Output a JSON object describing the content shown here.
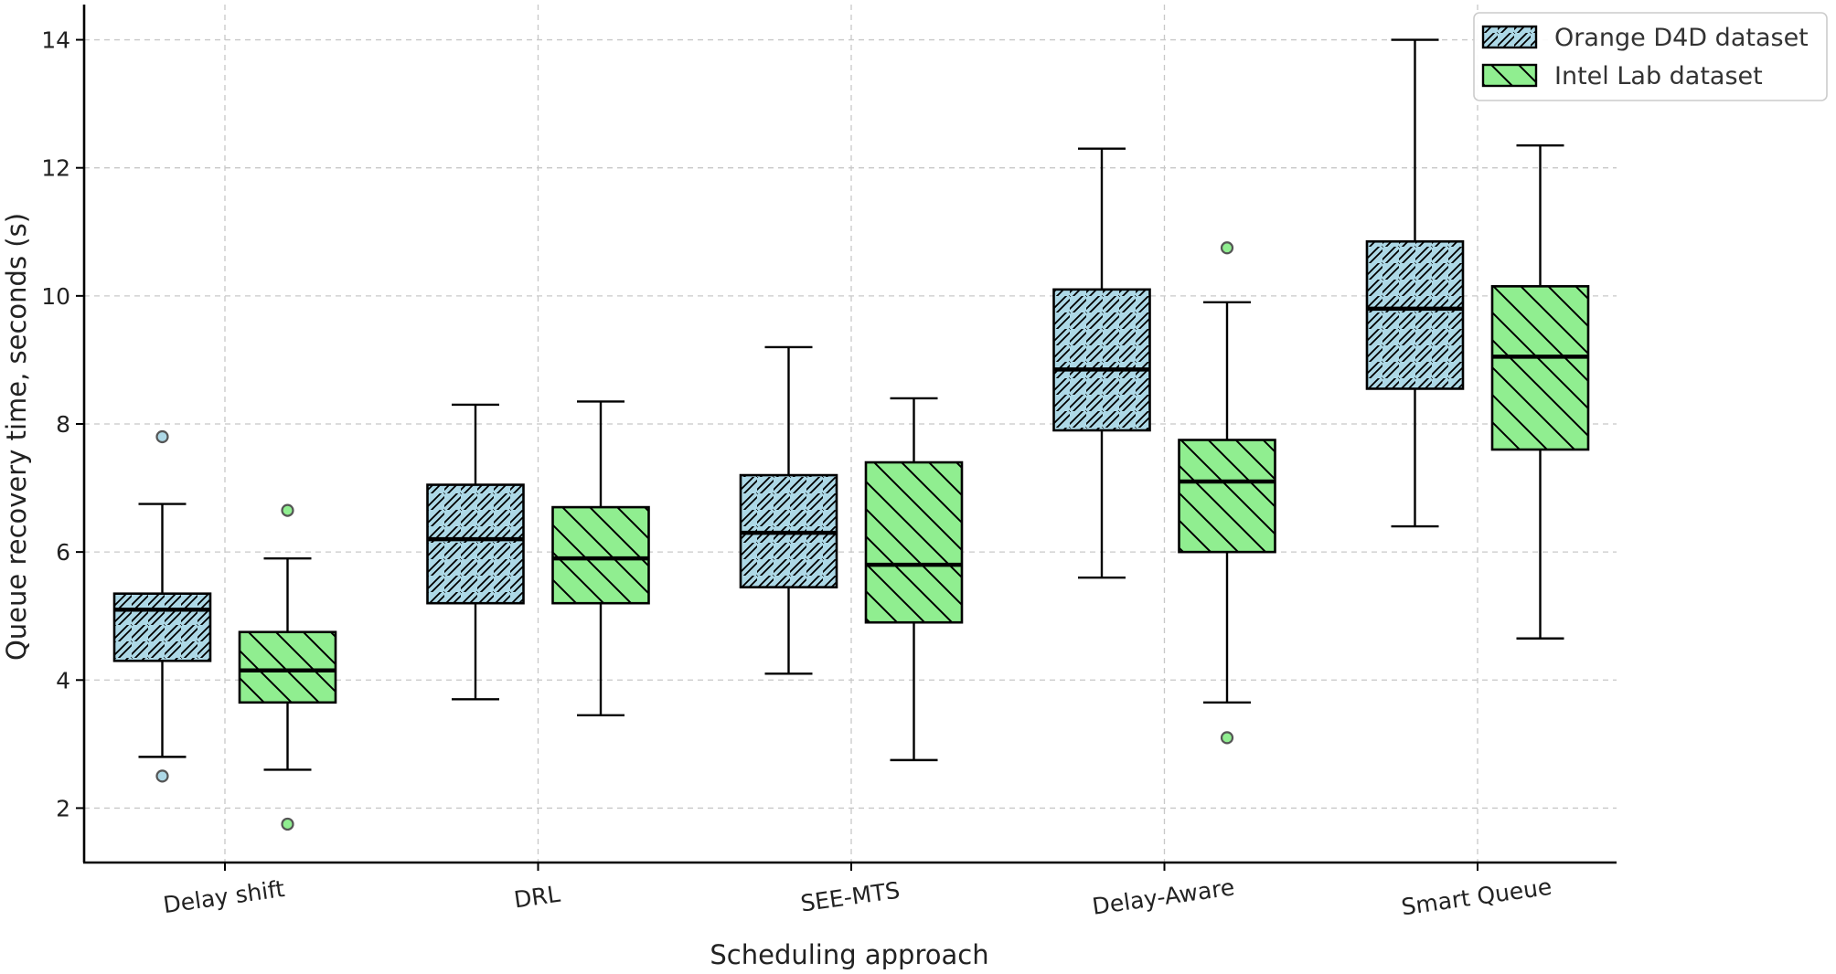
{
  "chart_data": {
    "type": "boxplot",
    "title": "",
    "xlabel": "Scheduling approach",
    "ylabel": "Queue recovery time, seconds (s)",
    "ylim": [
      1.15,
      14.55
    ],
    "yticks": [
      2,
      4,
      6,
      8,
      10,
      12,
      14
    ],
    "grid": true,
    "legend_position": "top-right",
    "categories": [
      "Delay shift",
      "DRL",
      "SEE-MTS",
      "Delay-Aware",
      "Smart Queue"
    ],
    "series": [
      {
        "name": "Orange D4D dataset",
        "color": "#add8e6",
        "hatch": "forward",
        "boxes": [
          {
            "whislo": 2.8,
            "q1": 4.3,
            "med": 5.1,
            "q3": 5.35,
            "whishi": 6.75,
            "fliers": [
              7.8,
              2.5
            ]
          },
          {
            "whislo": 3.7,
            "q1": 5.2,
            "med": 6.2,
            "q3": 7.05,
            "whishi": 8.3,
            "fliers": []
          },
          {
            "whislo": 4.1,
            "q1": 5.45,
            "med": 6.3,
            "q3": 7.2,
            "whishi": 9.2,
            "fliers": []
          },
          {
            "whislo": 5.6,
            "q1": 7.9,
            "med": 8.85,
            "q3": 10.1,
            "whishi": 12.3,
            "fliers": []
          },
          {
            "whislo": 6.4,
            "q1": 8.55,
            "med": 9.8,
            "q3": 10.85,
            "whishi": 14.0,
            "fliers": []
          }
        ]
      },
      {
        "name": "Intel Lab dataset",
        "color": "#90ee90",
        "hatch": "back",
        "boxes": [
          {
            "whislo": 2.6,
            "q1": 3.65,
            "med": 4.15,
            "q3": 4.75,
            "whishi": 5.9,
            "fliers": [
              6.65,
              1.75
            ]
          },
          {
            "whislo": 3.45,
            "q1": 5.2,
            "med": 5.9,
            "q3": 6.7,
            "whishi": 8.35,
            "fliers": []
          },
          {
            "whislo": 2.75,
            "q1": 4.9,
            "med": 5.8,
            "q3": 7.4,
            "whishi": 8.4,
            "fliers": []
          },
          {
            "whislo": 3.65,
            "q1": 6.0,
            "med": 7.1,
            "q3": 7.75,
            "whishi": 9.9,
            "fliers": [
              10.75,
              3.1
            ]
          },
          {
            "whislo": 4.65,
            "q1": 7.6,
            "med": 9.05,
            "q3": 10.15,
            "whishi": 12.35,
            "fliers": []
          }
        ]
      }
    ]
  }
}
